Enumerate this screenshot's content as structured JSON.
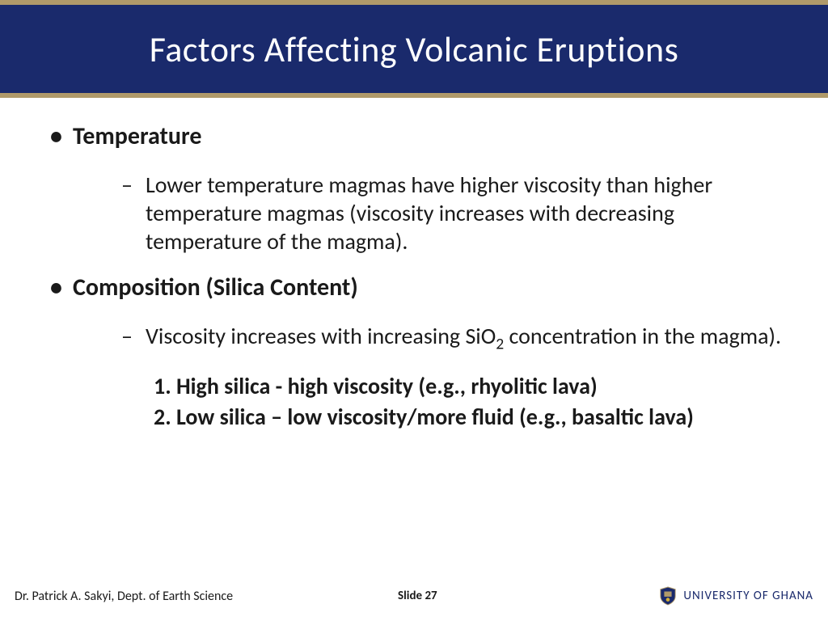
{
  "colors": {
    "banner_bg": "#1a2a6c",
    "accent_bar": "#b09a6a",
    "title_text": "#ffffff",
    "body_text": "#1a1a1a",
    "uni_text": "#1a2a6c",
    "page_bg": "#ffffff"
  },
  "typography": {
    "title_fontsize": 44,
    "main_bullet_fontsize": 30,
    "sub_bullet_fontsize": 28,
    "numbered_fontsize": 28,
    "footer_fontsize": 16
  },
  "title": "Factors Affecting Volcanic Eruptions",
  "bullets": [
    {
      "heading": "Temperature",
      "sub": "Lower temperature magmas have higher viscosity than higher temperature magmas (viscosity increases with decreasing temperature of the magma)."
    },
    {
      "heading": "Composition (Silica Content)",
      "sub_html": "Viscosity increases with increasing SiO<sub>2</sub> concentration in the magma).",
      "numbered": [
        "1. High silica - high viscosity (e.g., rhyolitic lava)",
        "2. Low silica – low viscosity/more fluid (e.g., basaltic lava)"
      ]
    }
  ],
  "footer": {
    "author": "Dr. Patrick A. Sakyi, Dept. of Earth Science",
    "slide_label": "Slide 27",
    "university": "UNIVERSITY OF GHANA"
  }
}
